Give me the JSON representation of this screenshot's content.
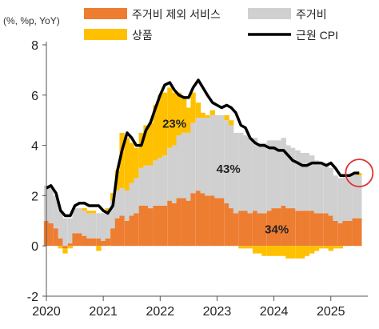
{
  "chart_data": {
    "type": "area",
    "unit_label": "(%, %p, YoY)",
    "x_ticks": [
      "2020",
      "2021",
      "2022",
      "2023",
      "2024",
      "2025"
    ],
    "y_ticks": [
      "-2",
      "0",
      "2",
      "4",
      "6",
      "8"
    ],
    "ylim": [
      -2,
      8
    ],
    "xlim": [
      2020.0,
      2025.65
    ],
    "grid": false,
    "legend_position": "top",
    "colors": {
      "services_ex_housing": "#ED7D31",
      "housing": "#D0D0D0",
      "goods": "#FFC000",
      "core_cpi": "#000000",
      "highlight_circle": "#E03030"
    },
    "x": [
      2020.0,
      2020.08,
      2020.17,
      2020.25,
      2020.33,
      2020.42,
      2020.5,
      2020.58,
      2020.67,
      2020.75,
      2020.83,
      2020.92,
      2021.0,
      2021.08,
      2021.17,
      2021.25,
      2021.33,
      2021.42,
      2021.5,
      2021.58,
      2021.67,
      2021.75,
      2021.83,
      2021.92,
      2022.0,
      2022.08,
      2022.17,
      2022.25,
      2022.33,
      2022.42,
      2022.5,
      2022.58,
      2022.67,
      2022.75,
      2022.83,
      2022.92,
      2023.0,
      2023.08,
      2023.17,
      2023.25,
      2023.33,
      2023.42,
      2023.5,
      2023.58,
      2023.67,
      2023.75,
      2023.83,
      2023.92,
      2024.0,
      2024.08,
      2024.17,
      2024.25,
      2024.33,
      2024.42,
      2024.5,
      2024.58,
      2024.67,
      2024.75,
      2024.83,
      2024.92,
      2025.0,
      2025.08,
      2025.17,
      2025.25,
      2025.33,
      2025.42,
      2025.5
    ],
    "series": [
      {
        "name": "주거비 제외 서비스",
        "values": [
          1.0,
          0.9,
          0.7,
          0.3,
          -0.1,
          0.1,
          0.5,
          0.5,
          0.4,
          0.3,
          0.3,
          0.3,
          0.2,
          0.3,
          0.7,
          1.1,
          1.2,
          1.0,
          1.2,
          1.3,
          1.6,
          1.6,
          1.5,
          1.6,
          1.6,
          1.6,
          1.8,
          1.7,
          1.9,
          1.9,
          1.8,
          2.1,
          2.2,
          2.1,
          2.0,
          2.0,
          1.9,
          1.9,
          1.7,
          1.5,
          1.3,
          1.4,
          1.4,
          1.3,
          1.4,
          1.3,
          1.3,
          1.4,
          1.5,
          1.5,
          1.6,
          1.5,
          1.5,
          1.4,
          1.4,
          1.4,
          1.4,
          1.3,
          1.3,
          1.3,
          1.2,
          1.0,
          0.9,
          1.0,
          1.0,
          1.1,
          1.1
        ]
      },
      {
        "name": "주거비",
        "values": [
          1.4,
          1.4,
          1.3,
          1.1,
          1.1,
          1.0,
          1.0,
          1.0,
          1.0,
          1.0,
          1.0,
          1.0,
          1.1,
          1.1,
          1.1,
          1.1,
          1.1,
          1.2,
          1.3,
          1.4,
          1.5,
          1.6,
          1.7,
          1.8,
          1.9,
          2.0,
          2.1,
          2.3,
          2.5,
          2.6,
          2.7,
          2.8,
          2.9,
          3.0,
          3.1,
          3.2,
          3.3,
          3.3,
          3.3,
          3.3,
          3.2,
          3.1,
          3.0,
          3.0,
          2.9,
          2.8,
          2.8,
          2.8,
          2.7,
          2.7,
          2.7,
          2.5,
          2.4,
          2.4,
          2.3,
          2.3,
          2.2,
          2.1,
          2.0,
          1.9,
          1.9,
          1.8,
          1.8,
          1.8,
          1.8,
          1.8,
          1.7
        ]
      },
      {
        "name": "상품",
        "values": [
          0.0,
          0.0,
          0.0,
          -0.1,
          -0.2,
          -0.1,
          0.0,
          0.0,
          0.1,
          0.1,
          0.1,
          -0.2,
          0.0,
          0.1,
          0.3,
          0.8,
          2.2,
          2.1,
          1.6,
          1.2,
          1.4,
          1.6,
          1.7,
          2.2,
          2.5,
          2.5,
          2.4,
          2.1,
          1.7,
          1.4,
          1.0,
          1.2,
          0.6,
          0.2,
          0.1,
          0.2,
          0.0,
          0.0,
          0.2,
          0.2,
          0.0,
          -0.1,
          -0.1,
          -0.1,
          -0.3,
          -0.3,
          -0.4,
          -0.4,
          -0.4,
          -0.4,
          -0.4,
          -0.5,
          -0.5,
          -0.5,
          -0.5,
          -0.4,
          -0.3,
          -0.2,
          -0.1,
          -0.1,
          -0.2,
          -0.1,
          -0.1,
          0.0,
          0.0,
          0.0,
          0.1
        ]
      },
      {
        "name": "근원 CPI",
        "values": [
          2.3,
          2.4,
          2.1,
          1.4,
          1.2,
          1.2,
          1.6,
          1.7,
          1.7,
          1.6,
          1.6,
          1.6,
          1.4,
          1.3,
          1.6,
          3.0,
          3.8,
          4.5,
          4.3,
          4.0,
          4.0,
          4.6,
          4.9,
          5.5,
          6.0,
          6.4,
          6.5,
          6.2,
          6.0,
          5.9,
          5.9,
          6.3,
          6.6,
          6.3,
          6.0,
          5.7,
          5.6,
          5.5,
          5.6,
          5.5,
          5.3,
          4.8,
          4.7,
          4.3,
          4.1,
          4.0,
          4.0,
          3.9,
          3.9,
          3.8,
          3.8,
          3.6,
          3.4,
          3.3,
          3.2,
          3.2,
          3.3,
          3.3,
          3.3,
          3.2,
          3.3,
          3.1,
          2.8,
          2.8,
          2.8,
          2.9,
          2.9
        ]
      }
    ],
    "legend": [
      "주거비 제외 서비스",
      "주거비",
      "상품",
      "근원 CPI"
    ],
    "annotations": [
      "23%",
      "43%",
      "34%"
    ],
    "annotation_anchors": [
      {
        "text": "23%",
        "x": 2022.25,
        "y": 4.7
      },
      {
        "text": "43%",
        "x": 2023.2,
        "y": 2.9
      },
      {
        "text": "34%",
        "x": 2024.05,
        "y": 0.5
      }
    ],
    "highlight_point": {
      "x": 2025.5,
      "y": 2.9
    }
  }
}
